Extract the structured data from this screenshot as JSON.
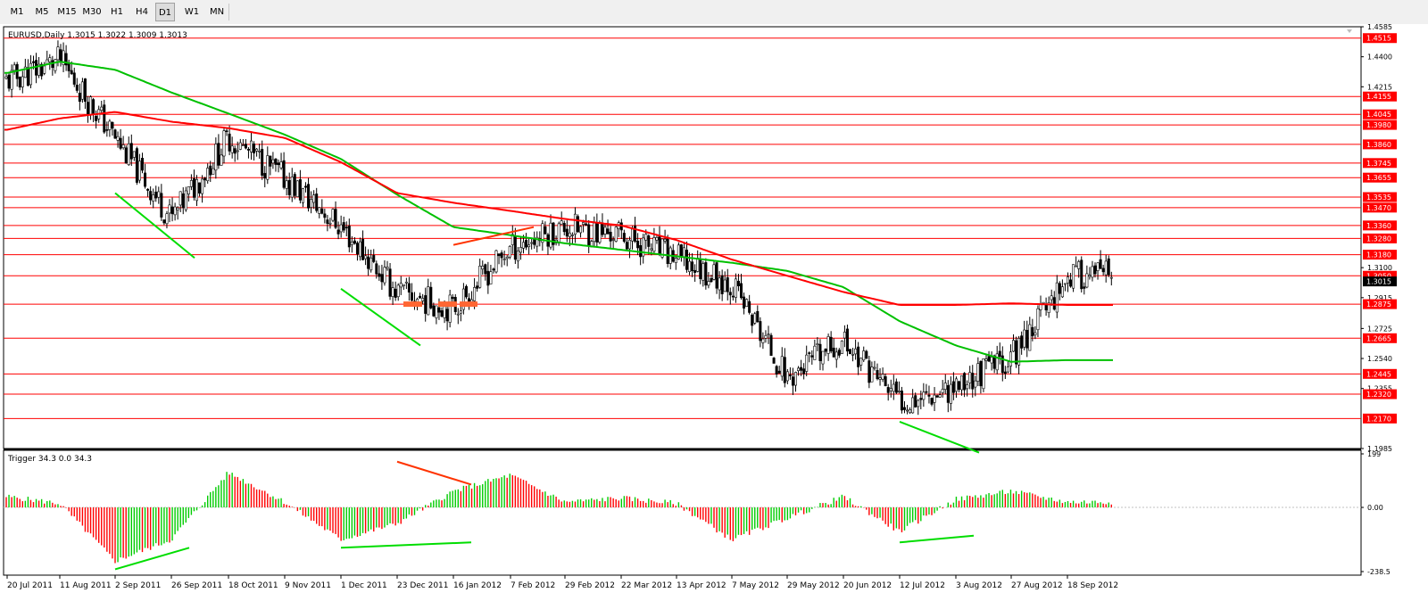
{
  "toolbar": {
    "timeframes": [
      "M1",
      "M5",
      "M15",
      "M30",
      "H1",
      "H4",
      "D1",
      "W1",
      "MN"
    ],
    "active": "D1"
  },
  "chart_data": {
    "type": "candlestick",
    "symbol_title": "EURUSD,Daily  1.3015 1.3022 1.3009 1.3013",
    "last_price": "1.3015",
    "colors": {
      "level_line": "#ff0000",
      "sma_fast": "#ff0000",
      "sma_slow": "#00c000",
      "trend_line": "#00dd00",
      "divergence_line": "#ff3300",
      "hist_up": "#00cc00",
      "hist_down": "#ff0000",
      "support_marker": "#ff6633"
    },
    "price_axis": {
      "min": 1.1985,
      "max": 1.4585,
      "ticks": [
        "1.4585",
        "1.4400",
        "1.4215",
        "1.3100",
        "1.2915",
        "1.2725",
        "1.2540",
        "1.2355",
        "1.1985"
      ]
    },
    "level_lines": [
      "1.4515",
      "1.4155",
      "1.4045",
      "1.3980",
      "1.3860",
      "1.3745",
      "1.3655",
      "1.3535",
      "1.3470",
      "1.3360",
      "1.3280",
      "1.3180",
      "1.3050",
      "1.2875",
      "1.2665",
      "1.2445",
      "1.2320",
      "1.2170"
    ],
    "date_axis": {
      "labels": [
        "20 Jul 2011",
        "11 Aug 2011",
        "2 Sep 2011",
        "26 Sep 2011",
        "18 Oct 2011",
        "9 Nov 2011",
        "1 Dec 2011",
        "23 Dec 2011",
        "16 Jan 2012",
        "7 Feb 2012",
        "29 Feb 2012",
        "22 Mar 2012",
        "13 Apr 2012",
        "7 May 2012",
        "29 May 2012",
        "20 Jun 2012",
        "12 Jul 2012",
        "3 Aug 2012",
        "27 Aug 2012",
        "18 Sep 2012"
      ]
    },
    "price_path": {
      "labels": [
        "20 Jul 2011",
        "11 Aug 2011",
        "2 Sep 2011",
        "26 Sep 2011",
        "18 Oct 2011",
        "9 Nov 2011",
        "1 Dec 2011",
        "23 Dec 2011",
        "16 Jan 2012",
        "7 Feb 2012",
        "29 Feb 2012",
        "22 Mar 2012",
        "13 Apr 2012",
        "7 May 2012",
        "29 May 2012",
        "20 Jun 2012",
        "12 Jul 2012",
        "3 Aug 2012",
        "27 Aug 2012",
        "18 Sep 2012"
      ],
      "closes": [
        1.425,
        1.438,
        1.39,
        1.34,
        1.39,
        1.365,
        1.335,
        1.295,
        1.285,
        1.322,
        1.335,
        1.33,
        1.316,
        1.3,
        1.242,
        1.265,
        1.228,
        1.237,
        1.255,
        1.305
      ]
    },
    "sma_slow": {
      "labels": [
        "20 Jul 2011",
        "11 Aug 2011",
        "2 Sep 2011",
        "26 Sep 2011",
        "18 Oct 2011",
        "9 Nov 2011",
        "1 Dec 2011",
        "23 Dec 2011",
        "16 Jan 2012",
        "7 Feb 2012",
        "29 Feb 2012",
        "22 Mar 2012",
        "13 Apr 2012",
        "7 May 2012",
        "29 May 2012",
        "20 Jun 2012",
        "12 Jul 2012",
        "3 Aug 2012",
        "27 Aug 2012",
        "18 Sep 2012"
      ],
      "values": [
        1.43,
        1.437,
        1.432,
        1.418,
        1.405,
        1.392,
        1.377,
        1.355,
        1.335,
        1.33,
        1.325,
        1.321,
        1.317,
        1.313,
        1.308,
        1.298,
        1.277,
        1.262,
        1.252,
        1.253
      ]
    },
    "sma_fast": {
      "labels": [
        "20 Jul 2011",
        "11 Aug 2011",
        "2 Sep 2011",
        "26 Sep 2011",
        "18 Oct 2011",
        "9 Nov 2011",
        "1 Dec 2011",
        "23 Dec 2011",
        "16 Jan 2012",
        "7 Feb 2012",
        "29 Feb 2012",
        "22 Mar 2012",
        "13 Apr 2012",
        "7 May 2012",
        "29 May 2012",
        "20 Jun 2012",
        "12 Jul 2012",
        "3 Aug 2012",
        "27 Aug 2012",
        "18 Sep 2012"
      ],
      "values": [
        1.395,
        1.402,
        1.406,
        1.4,
        1.396,
        1.39,
        1.375,
        1.356,
        1.35,
        1.345,
        1.34,
        1.336,
        1.327,
        1.315,
        1.305,
        1.295,
        1.287,
        1.287,
        1.288,
        1.287
      ]
    },
    "trend_lines": [
      {
        "from": [
          "2 Sep 2011",
          1.356
        ],
        "to": [
          "26 Sep 2011",
          1.316
        ],
        "color": "#00dd00"
      },
      {
        "from": [
          "1 Dec 2011",
          1.297
        ],
        "to": [
          "23 Dec 2011",
          1.262
        ],
        "color": "#00dd00"
      },
      {
        "from": [
          "12 Jul 2012",
          1.215
        ],
        "to": [
          "3 Aug 2012",
          1.196
        ],
        "color": "#00dd00"
      },
      {
        "from": [
          "16 Jan 2012",
          1.324
        ],
        "to": [
          "7 Feb 2012",
          1.335
        ],
        "color": "#ff3300"
      }
    ],
    "support_markers": [
      {
        "from": "23 Dec 2011",
        "to": "23 Dec 2011",
        "price": 1.2875
      },
      {
        "from": "16 Jan 2012",
        "to": "16 Jan 2012",
        "price": 1.2875
      }
    ],
    "indicator": {
      "title": "Trigger 34.3 0.0 34.3",
      "axis": {
        "max": 199,
        "min": -238.5,
        "ticks": [
          "199",
          "0.00",
          "-238.5"
        ]
      },
      "labels": [
        "20 Jul 2011",
        "11 Aug 2011",
        "2 Sep 2011",
        "26 Sep 2011",
        "18 Oct 2011",
        "9 Nov 2011",
        "1 Dec 2011",
        "23 Dec 2011",
        "16 Jan 2012",
        "7 Feb 2012",
        "29 Feb 2012",
        "22 Mar 2012",
        "13 Apr 2012",
        "7 May 2012",
        "29 May 2012",
        "20 Jun 2012",
        "12 Jul 2012",
        "3 Aug 2012",
        "27 Aug 2012",
        "18 Sep 2012"
      ],
      "values": [
        40,
        15,
        -200,
        -120,
        130,
        20,
        -120,
        -60,
        60,
        120,
        20,
        35,
        15,
        -120,
        -40,
        40,
        -90,
        30,
        60,
        20
      ],
      "trend_lines": [
        {
          "from": [
            "2 Sep 2011",
            -230
          ],
          "to": [
            "26 Sep 2011",
            -150
          ],
          "color": "#00dd00"
        },
        {
          "from": [
            "1 Dec 2011",
            -150
          ],
          "to": [
            "16 Jan 2012",
            -130
          ],
          "color": "#00dd00"
        },
        {
          "from": [
            "12 Jul 2012",
            -130
          ],
          "to": [
            "3 Aug 2012",
            -105
          ],
          "color": "#00dd00"
        },
        {
          "from": [
            "23 Dec 2011",
            170
          ],
          "to": [
            "16 Jan 2012",
            85
          ],
          "color": "#ff3300"
        }
      ]
    }
  }
}
